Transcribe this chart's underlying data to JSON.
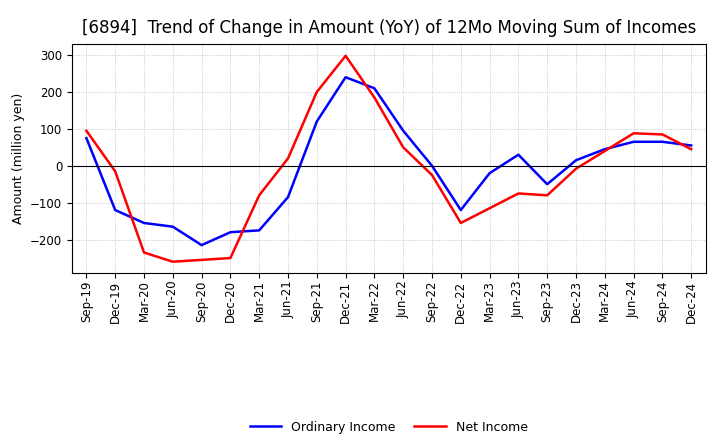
{
  "title": "[6894]  Trend of Change in Amount (YoY) of 12Mo Moving Sum of Incomes",
  "ylabel": "Amount (million yen)",
  "xlabels": [
    "Sep-19",
    "Dec-19",
    "Mar-20",
    "Jun-20",
    "Sep-20",
    "Dec-20",
    "Mar-21",
    "Jun-21",
    "Sep-21",
    "Dec-21",
    "Mar-22",
    "Jun-22",
    "Sep-22",
    "Dec-22",
    "Mar-23",
    "Jun-23",
    "Sep-23",
    "Dec-23",
    "Mar-24",
    "Jun-24",
    "Sep-24",
    "Dec-24"
  ],
  "ordinary_income": [
    75,
    -120,
    -155,
    -165,
    -215,
    -180,
    -175,
    -85,
    120,
    240,
    210,
    95,
    0,
    -120,
    -20,
    30,
    -50,
    15,
    45,
    65,
    65,
    55
  ],
  "net_income": [
    95,
    -15,
    -235,
    -260,
    -255,
    -250,
    -80,
    20,
    200,
    298,
    185,
    50,
    -25,
    -155,
    -115,
    -75,
    -80,
    -8,
    40,
    88,
    85,
    45
  ],
  "ordinary_color": "#0000ff",
  "net_color": "#ff0000",
  "ylim": [
    -290,
    330
  ],
  "yticks": [
    -200,
    -100,
    0,
    100,
    200,
    300
  ],
  "line_width": 1.8,
  "legend_ordinary": "Ordinary Income",
  "legend_net": "Net Income",
  "bg_color": "#ffffff",
  "grid_color": "#bbbbbb",
  "title_fontsize": 12,
  "ylabel_fontsize": 9,
  "tick_fontsize": 8.5,
  "legend_fontsize": 9
}
